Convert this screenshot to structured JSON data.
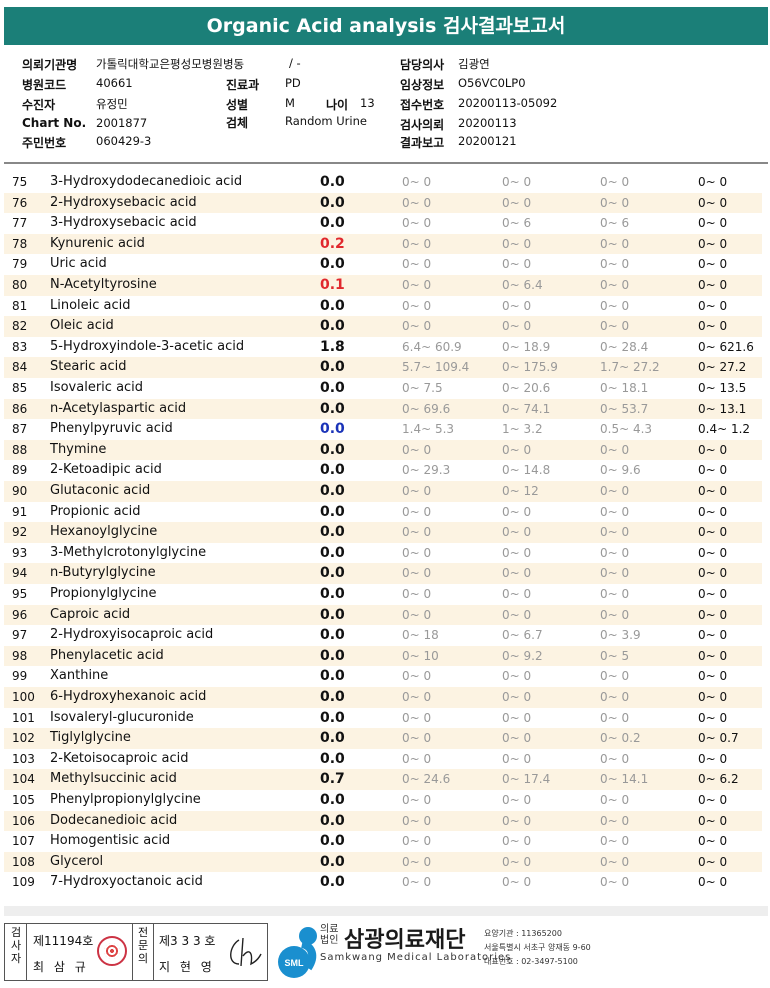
{
  "title": "Organic Acid analysis 검사결과보고서",
  "info": {
    "inst_label": "의뢰기관명",
    "inst_value": "가톨릭대학교은평성모병원병동",
    "inst_extra": "/ -",
    "hosp_label": "병원코드",
    "hosp_value": "40661",
    "dept_label": "진료과",
    "dept_value": "PD",
    "collector_label": "수진자",
    "collector_value": "유정민",
    "sex_label": "성별",
    "sex_value": "M",
    "age_label": "나이",
    "age_value": "13",
    "chart_label": "Chart No.",
    "chart_value": "2001877",
    "specimen_label": "검체",
    "specimen_value": "Random Urine",
    "resident_label": "주민번호",
    "resident_value": "060429-3",
    "doctor_label": "담당의사",
    "doctor_value": "김광연",
    "clinical_label": "임상정보",
    "clinical_value": "O56VC0LP0",
    "receipt_label": "접수번호",
    "receipt_value": "20200113-05092",
    "request_label": "검사의뢰",
    "request_value": "20200113",
    "report_label": "결과보고",
    "report_value": "20200121"
  },
  "rows": [
    {
      "n": "75",
      "name": "3-Hydroxydodecanedioic acid",
      "v": "0.0",
      "c": "#111",
      "r1": "0~ 0",
      "r2": "0~ 0",
      "r3": "0~ 0",
      "r4": "0~ 0"
    },
    {
      "n": "76",
      "name": "2-Hydroxysebacic acid",
      "v": "0.0",
      "c": "#111",
      "r1": "0~ 0",
      "r2": "0~ 0",
      "r3": "0~ 0",
      "r4": "0~ 0"
    },
    {
      "n": "77",
      "name": "3-Hydroxysebacic acid",
      "v": "0.0",
      "c": "#111",
      "r1": "0~ 0",
      "r2": "0~ 6",
      "r3": "0~ 6",
      "r4": "0~ 0"
    },
    {
      "n": "78",
      "name": "Kynurenic acid",
      "v": "0.2",
      "c": "#e0282d",
      "r1": "0~ 0",
      "r2": "0~ 0",
      "r3": "0~ 0",
      "r4": "0~ 0"
    },
    {
      "n": "79",
      "name": "Uric acid",
      "v": "0.0",
      "c": "#111",
      "r1": "0~ 0",
      "r2": "0~ 0",
      "r3": "0~ 0",
      "r4": "0~ 0"
    },
    {
      "n": "80",
      "name": "N-Acetyltyrosine",
      "v": "0.1",
      "c": "#e0282d",
      "r1": "0~ 0",
      "r2": "0~ 6.4",
      "r3": "0~ 0",
      "r4": "0~ 0"
    },
    {
      "n": "81",
      "name": "Linoleic acid",
      "v": "0.0",
      "c": "#111",
      "r1": "0~ 0",
      "r2": "0~ 0",
      "r3": "0~ 0",
      "r4": "0~ 0"
    },
    {
      "n": "82",
      "name": "Oleic acid",
      "v": "0.0",
      "c": "#111",
      "r1": "0~ 0",
      "r2": "0~ 0",
      "r3": "0~ 0",
      "r4": "0~ 0"
    },
    {
      "n": "83",
      "name": "5-Hydroxyindole-3-acetic acid",
      "v": "1.8",
      "c": "#111",
      "r1": "6.4~ 60.9",
      "r2": "0~ 18.9",
      "r3": "0~ 28.4",
      "r4": "0~ 621.6"
    },
    {
      "n": "84",
      "name": "Stearic acid",
      "v": "0.0",
      "c": "#111",
      "r1": "5.7~ 109.4",
      "r2": "0~ 175.9",
      "r3": "1.7~ 27.2",
      "r4": "0~ 27.2"
    },
    {
      "n": "85",
      "name": "Isovaleric acid",
      "v": "0.0",
      "c": "#111",
      "r1": "0~ 7.5",
      "r2": "0~ 20.6",
      "r3": "0~ 18.1",
      "r4": "0~ 13.5"
    },
    {
      "n": "86",
      "name": "n-Acetylaspartic acid",
      "v": "0.0",
      "c": "#111",
      "r1": "0~ 69.6",
      "r2": "0~ 74.1",
      "r3": "0~ 53.7",
      "r4": "0~ 13.1"
    },
    {
      "n": "87",
      "name": "Phenylpyruvic acid",
      "v": "0.0",
      "c": "#1a33b8",
      "r1": "1.4~ 5.3",
      "r2": "1~ 3.2",
      "r3": "0.5~ 4.3",
      "r4": "0.4~ 1.2"
    },
    {
      "n": "88",
      "name": "Thymine",
      "v": "0.0",
      "c": "#111",
      "r1": "0~ 0",
      "r2": "0~ 0",
      "r3": "0~ 0",
      "r4": "0~ 0"
    },
    {
      "n": "89",
      "name": "2-Ketoadipic acid",
      "v": "0.0",
      "c": "#111",
      "r1": "0~ 29.3",
      "r2": "0~ 14.8",
      "r3": "0~ 9.6",
      "r4": "0~ 0"
    },
    {
      "n": "90",
      "name": "Glutaconic acid",
      "v": "0.0",
      "c": "#111",
      "r1": "0~ 0",
      "r2": "0~ 12",
      "r3": "0~ 0",
      "r4": "0~ 0"
    },
    {
      "n": "91",
      "name": "Propionic acid",
      "v": "0.0",
      "c": "#111",
      "r1": "0~ 0",
      "r2": "0~ 0",
      "r3": "0~ 0",
      "r4": "0~ 0"
    },
    {
      "n": "92",
      "name": "Hexanoylglycine",
      "v": "0.0",
      "c": "#111",
      "r1": "0~ 0",
      "r2": "0~ 0",
      "r3": "0~ 0",
      "r4": "0~ 0"
    },
    {
      "n": "93",
      "name": "3-Methylcrotonylglycine",
      "v": "0.0",
      "c": "#111",
      "r1": "0~ 0",
      "r2": "0~ 0",
      "r3": "0~ 0",
      "r4": "0~ 0"
    },
    {
      "n": "94",
      "name": "n-Butyrylglycine",
      "v": "0.0",
      "c": "#111",
      "r1": "0~ 0",
      "r2": "0~ 0",
      "r3": "0~ 0",
      "r4": "0~ 0"
    },
    {
      "n": "95",
      "name": "Propionylglycine",
      "v": "0.0",
      "c": "#111",
      "r1": "0~ 0",
      "r2": "0~ 0",
      "r3": "0~ 0",
      "r4": "0~ 0"
    },
    {
      "n": "96",
      "name": "Caproic acid",
      "v": "0.0",
      "c": "#111",
      "r1": "0~ 0",
      "r2": "0~ 0",
      "r3": "0~ 0",
      "r4": "0~ 0"
    },
    {
      "n": "97",
      "name": "2-Hydroxyisocaproic acid",
      "v": "0.0",
      "c": "#111",
      "r1": "0~ 18",
      "r2": "0~ 6.7",
      "r3": "0~ 3.9",
      "r4": "0~ 0"
    },
    {
      "n": "98",
      "name": "Phenylacetic acid",
      "v": "0.0",
      "c": "#111",
      "r1": "0~ 10",
      "r2": "0~ 9.2",
      "r3": "0~ 5",
      "r4": "0~ 0"
    },
    {
      "n": "99",
      "name": "Xanthine",
      "v": "0.0",
      "c": "#111",
      "r1": "0~ 0",
      "r2": "0~ 0",
      "r3": "0~ 0",
      "r4": "0~ 0"
    },
    {
      "n": "100",
      "name": "6-Hydroxyhexanoic acid",
      "v": "0.0",
      "c": "#111",
      "r1": "0~ 0",
      "r2": "0~ 0",
      "r3": "0~ 0",
      "r4": "0~ 0"
    },
    {
      "n": "101",
      "name": "Isovaleryl-glucuronide",
      "v": "0.0",
      "c": "#111",
      "r1": "0~ 0",
      "r2": "0~ 0",
      "r3": "0~ 0",
      "r4": "0~ 0"
    },
    {
      "n": "102",
      "name": "Tiglylglycine",
      "v": "0.0",
      "c": "#111",
      "r1": "0~ 0",
      "r2": "0~ 0",
      "r3": "0~ 0.2",
      "r4": "0~ 0.7"
    },
    {
      "n": "103",
      "name": "2-Ketoisocaproic acid",
      "v": "0.0",
      "c": "#111",
      "r1": "0~ 0",
      "r2": "0~ 0",
      "r3": "0~ 0",
      "r4": "0~ 0"
    },
    {
      "n": "104",
      "name": "Methylsuccinic acid",
      "v": "0.7",
      "c": "#111",
      "r1": "0~ 24.6",
      "r2": "0~ 17.4",
      "r3": "0~ 14.1",
      "r4": "0~ 6.2"
    },
    {
      "n": "105",
      "name": "Phenylpropionylglycine",
      "v": "0.0",
      "c": "#111",
      "r1": "0~ 0",
      "r2": "0~ 0",
      "r3": "0~ 0",
      "r4": "0~ 0"
    },
    {
      "n": "106",
      "name": "Dodecanedioic acid",
      "v": "0.0",
      "c": "#111",
      "r1": "0~ 0",
      "r2": "0~ 0",
      "r3": "0~ 0",
      "r4": "0~ 0"
    },
    {
      "n": "107",
      "name": "Homogentisic acid",
      "v": "0.0",
      "c": "#111",
      "r1": "0~ 0",
      "r2": "0~ 0",
      "r3": "0~ 0",
      "r4": "0~ 0"
    },
    {
      "n": "108",
      "name": "Glycerol",
      "v": "0.0",
      "c": "#111",
      "r1": "0~ 0",
      "r2": "0~ 0",
      "r3": "0~ 0",
      "r4": "0~ 0"
    },
    {
      "n": "109",
      "name": "7-Hydroxyoctanoic acid",
      "v": "0.0",
      "c": "#111",
      "r1": "0~ 0",
      "r2": "0~ 0",
      "r3": "0~ 0",
      "r4": "0~ 0"
    }
  ],
  "footer": {
    "examiner_label": "검사자",
    "examiner_no": "제11194호",
    "examiner_name": "최 삼 규",
    "confirm_label": "전문의",
    "confirm_no": "제3 3 3 호",
    "confirm_name": "지 현 영",
    "logo_text": "SML",
    "org_prefix": "의료법인",
    "org_name": "삼광의료재단",
    "org_en": "Samkwang Medical Laboratories",
    "contact1": "요양기관 : 11365200",
    "contact2": "서울특별시 서초구 양재동 9-60",
    "contact3": "대표번호 : 02-3497-5100"
  }
}
